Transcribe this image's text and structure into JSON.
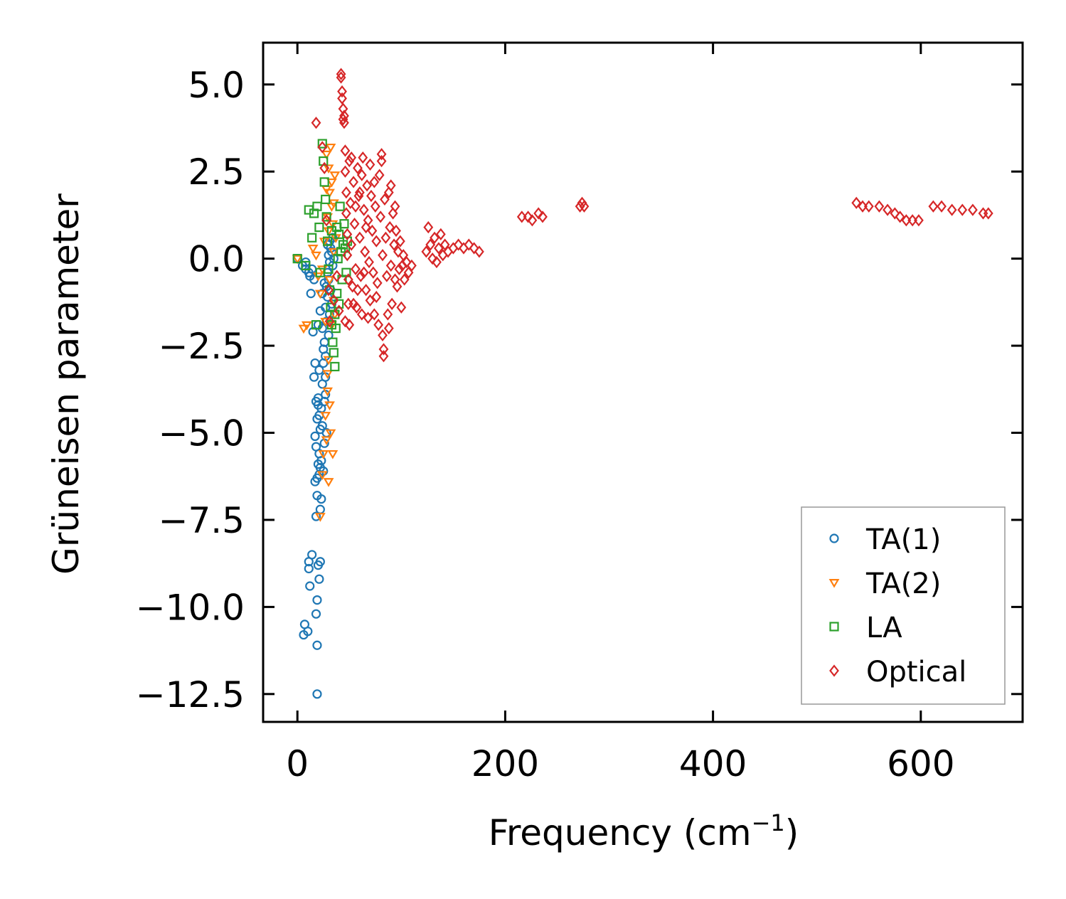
{
  "chart_data": {
    "type": "scatter",
    "title": "",
    "xlabel": "Frequency (cm",
    "xlabel_sup": "−1",
    "xlabel_close": ")",
    "ylabel": "Grüneisen parameter",
    "xlim": [
      -33,
      698
    ],
    "ylim": [
      -13.3,
      6.2
    ],
    "xticks": [
      0,
      200,
      400,
      600
    ],
    "xtick_labels": [
      "0",
      "200",
      "400",
      "600"
    ],
    "yticks": [
      5.0,
      2.5,
      0.0,
      -2.5,
      -5.0,
      -7.5,
      -10.0,
      -12.5
    ],
    "ytick_labels": [
      "5.0",
      "2.5",
      "0.0",
      "−2.5",
      "−5.0",
      "−7.5",
      "−10.0",
      "−12.5"
    ],
    "legend_position": "lower-right",
    "series": [
      {
        "name": "TA(1)",
        "marker": "circle",
        "color": "#1f77b4",
        "points": [
          [
            0,
            0
          ],
          [
            5,
            -0.2
          ],
          [
            8,
            -0.1
          ],
          [
            12,
            -0.5
          ],
          [
            13,
            -1.0
          ],
          [
            14,
            -0.3
          ],
          [
            15,
            -2.1
          ],
          [
            16,
            -0.6
          ],
          [
            16,
            -3.4
          ],
          [
            17,
            -3.0
          ],
          [
            17,
            -5.1
          ],
          [
            17,
            -6.4
          ],
          [
            18,
            -4.1
          ],
          [
            18,
            -5.4
          ],
          [
            18,
            -7.4
          ],
          [
            18,
            -10.2
          ],
          [
            19,
            -12.5
          ],
          [
            19,
            -6.3
          ],
          [
            19,
            -4.6
          ],
          [
            19,
            -6.8
          ],
          [
            19,
            -11.1
          ],
          [
            19,
            -9.8
          ],
          [
            20,
            -4.0
          ],
          [
            20,
            -4.2
          ],
          [
            20,
            -5.9
          ],
          [
            20,
            -8.8
          ],
          [
            21,
            -3.2
          ],
          [
            21,
            -4.5
          ],
          [
            21,
            -6.2
          ],
          [
            21,
            -9.2
          ],
          [
            22,
            -4.9
          ],
          [
            22,
            -6.0
          ],
          [
            22,
            -7.2
          ],
          [
            22,
            -8.7
          ],
          [
            23,
            -5.8
          ],
          [
            23,
            -6.9
          ],
          [
            23,
            -4.3
          ],
          [
            24,
            -3.6
          ],
          [
            24,
            -4.8
          ],
          [
            24,
            -2.0
          ],
          [
            25,
            -3.0
          ],
          [
            25,
            -6.1
          ],
          [
            26,
            -2.4
          ],
          [
            26,
            -4.1
          ],
          [
            27,
            -1.4
          ],
          [
            27,
            -2.8
          ],
          [
            27,
            -3.4
          ],
          [
            28,
            -1.8
          ],
          [
            28,
            -0.8
          ],
          [
            28,
            -5.0
          ],
          [
            29,
            -0.4
          ],
          [
            29,
            -1.1
          ],
          [
            30,
            0.1
          ],
          [
            30,
            -2.2
          ],
          [
            30,
            -0.6
          ],
          [
            31,
            0.5
          ],
          [
            31,
            -1.6
          ],
          [
            32,
            0.3
          ],
          [
            32,
            -0.9
          ],
          [
            33,
            0.2
          ],
          [
            34,
            0.6
          ],
          [
            34,
            -0.2
          ],
          [
            35,
            0.0
          ],
          [
            33,
            -1.3
          ],
          [
            31,
            -0.1
          ],
          [
            29,
            0.4
          ],
          [
            26,
            -0.7
          ],
          [
            24,
            -1.0
          ],
          [
            22,
            -1.5
          ],
          [
            20,
            -1.9
          ],
          [
            11,
            -0.4
          ],
          [
            10,
            -10.7
          ],
          [
            7,
            -10.5
          ],
          [
            6,
            -10.8
          ],
          [
            12,
            -9.4
          ],
          [
            11,
            -8.9
          ],
          [
            11,
            -8.7
          ],
          [
            14,
            -8.5
          ],
          [
            8,
            -0.3
          ],
          [
            25,
            -2.6
          ],
          [
            27,
            -3.9
          ],
          [
            26,
            -5.3
          ],
          [
            21,
            -5.6
          ]
        ]
      },
      {
        "name": "TA(2)",
        "marker": "triangle-down",
        "color": "#ff7f0e",
        "points": [
          [
            0,
            0
          ],
          [
            6,
            -2.0
          ],
          [
            9,
            -1.9
          ],
          [
            15,
            0.3
          ],
          [
            18,
            0.1
          ],
          [
            20,
            -0.5
          ],
          [
            22,
            -7.4
          ],
          [
            24,
            -6.2
          ],
          [
            25,
            -5.6
          ],
          [
            27,
            -4.5
          ],
          [
            28,
            2.0
          ],
          [
            28,
            3.0
          ],
          [
            29,
            1.2
          ],
          [
            29,
            -3.8
          ],
          [
            30,
            2.6
          ],
          [
            30,
            0.8
          ],
          [
            30,
            -2.9
          ],
          [
            31,
            1.9
          ],
          [
            31,
            -0.6
          ],
          [
            32,
            3.2
          ],
          [
            32,
            -5.0
          ],
          [
            33,
            2.2
          ],
          [
            33,
            1.5
          ],
          [
            34,
            1.0
          ],
          [
            34,
            -5.6
          ],
          [
            35,
            0.2
          ],
          [
            35,
            -1.2
          ],
          [
            36,
            -1.6
          ],
          [
            36,
            2.4
          ],
          [
            37,
            0.6
          ],
          [
            31,
            -4.2
          ],
          [
            29,
            -3.3
          ],
          [
            27,
            -1.8
          ],
          [
            26,
            0.5
          ],
          [
            24,
            -0.3
          ],
          [
            22,
            -1.0
          ],
          [
            33,
            -1.9
          ],
          [
            35,
            1.6
          ],
          [
            30,
            -6.4
          ],
          [
            28,
            -5.2
          ]
        ]
      },
      {
        "name": "LA",
        "marker": "square",
        "color": "#2ca02c",
        "points": [
          [
            0,
            0
          ],
          [
            8,
            -0.2
          ],
          [
            11,
            1.4
          ],
          [
            14,
            0.6
          ],
          [
            16,
            1.3
          ],
          [
            18,
            -1.9
          ],
          [
            19,
            1.5
          ],
          [
            21,
            0.9
          ],
          [
            22,
            -0.4
          ],
          [
            24,
            3.3
          ],
          [
            25,
            2.8
          ],
          [
            26,
            2.2
          ],
          [
            27,
            1.7
          ],
          [
            28,
            1.2
          ],
          [
            29,
            0.5
          ],
          [
            30,
            -0.3
          ],
          [
            31,
            -0.9
          ],
          [
            32,
            -1.4
          ],
          [
            33,
            -1.9
          ],
          [
            34,
            -2.4
          ],
          [
            35,
            -2.7
          ],
          [
            36,
            -3.1
          ],
          [
            37,
            -2.0
          ],
          [
            38,
            -1.0
          ],
          [
            39,
            0.0
          ],
          [
            40,
            0.7
          ],
          [
            41,
            1.5
          ],
          [
            42,
            0.2
          ],
          [
            43,
            -0.6
          ],
          [
            44,
            0.4
          ],
          [
            45,
            1.0
          ],
          [
            46,
            0.3
          ],
          [
            47,
            -0.4
          ],
          [
            48,
            0.5
          ],
          [
            36,
            -1.6
          ],
          [
            38,
            0.9
          ],
          [
            40,
            -1.3
          ],
          [
            33,
            0.8
          ]
        ]
      },
      {
        "name": "Optical",
        "marker": "diamond",
        "color": "#d62728",
        "points": [
          [
            18,
            3.9
          ],
          [
            24,
            3.2
          ],
          [
            26,
            2.6
          ],
          [
            28,
            1.1
          ],
          [
            30,
            -0.9
          ],
          [
            31,
            -1.8
          ],
          [
            35,
            -1.2
          ],
          [
            38,
            -0.5
          ],
          [
            40,
            -1.5
          ],
          [
            42,
            5.3
          ],
          [
            42,
            5.2
          ],
          [
            43,
            4.8
          ],
          [
            43,
            4.6
          ],
          [
            44,
            4.3
          ],
          [
            44,
            4.0
          ],
          [
            45,
            4.1
          ],
          [
            45,
            3.9
          ],
          [
            46,
            3.1
          ],
          [
            46,
            2.5
          ],
          [
            47,
            1.9
          ],
          [
            47,
            1.3
          ],
          [
            48,
            0.7
          ],
          [
            48,
            0.1
          ],
          [
            49,
            -0.6
          ],
          [
            49,
            -1.3
          ],
          [
            50,
            2.8
          ],
          [
            50,
            -1.9
          ],
          [
            51,
            1.6
          ],
          [
            52,
            0.4
          ],
          [
            53,
            -0.8
          ],
          [
            54,
            2.2
          ],
          [
            55,
            1.0
          ],
          [
            56,
            -0.3
          ],
          [
            57,
            -1.4
          ],
          [
            58,
            2.6
          ],
          [
            59,
            1.8
          ],
          [
            60,
            0.6
          ],
          [
            61,
            -0.5
          ],
          [
            62,
            -1.6
          ],
          [
            63,
            2.9
          ],
          [
            64,
            1.4
          ],
          [
            65,
            0.2
          ],
          [
            66,
            -0.9
          ],
          [
            67,
            2.1
          ],
          [
            68,
            1.1
          ],
          [
            69,
            -0.1
          ],
          [
            70,
            -1.2
          ],
          [
            71,
            1.8
          ],
          [
            72,
            0.8
          ],
          [
            73,
            -0.4
          ],
          [
            74,
            -1.6
          ],
          [
            75,
            1.5
          ],
          [
            76,
            0.5
          ],
          [
            77,
            -0.7
          ],
          [
            78,
            -1.9
          ],
          [
            79,
            2.4
          ],
          [
            80,
            1.2
          ],
          [
            81,
            3.0
          ],
          [
            81,
            2.8
          ],
          [
            82,
            0.1
          ],
          [
            82,
            -2.2
          ],
          [
            83,
            -2.8
          ],
          [
            83,
            -2.6
          ],
          [
            84,
            1.7
          ],
          [
            85,
            0.6
          ],
          [
            86,
            -0.5
          ],
          [
            87,
            -1.6
          ],
          [
            88,
            1.9
          ],
          [
            89,
            0.9
          ],
          [
            90,
            -0.2
          ],
          [
            91,
            -1.3
          ],
          [
            92,
            1.3
          ],
          [
            93,
            0.4
          ],
          [
            94,
            -0.6
          ],
          [
            95,
            0.8
          ],
          [
            96,
            -0.8
          ],
          [
            97,
            0.2
          ],
          [
            98,
            -0.3
          ],
          [
            99,
            0.5
          ],
          [
            100,
            -1.4
          ],
          [
            101,
            -0.2
          ],
          [
            102,
            0.1
          ],
          [
            103,
            -0.6
          ],
          [
            105,
            -0.1
          ],
          [
            107,
            -0.4
          ],
          [
            110,
            -0.2
          ],
          [
            124,
            0.2
          ],
          [
            126,
            0.9
          ],
          [
            128,
            0.4
          ],
          [
            130,
            0.0
          ],
          [
            132,
            0.6
          ],
          [
            134,
            -0.1
          ],
          [
            136,
            0.3
          ],
          [
            138,
            0.7
          ],
          [
            140,
            0.1
          ],
          [
            142,
            0.4
          ],
          [
            145,
            0.2
          ],
          [
            150,
            0.3
          ],
          [
            155,
            0.4
          ],
          [
            160,
            0.3
          ],
          [
            165,
            0.4
          ],
          [
            170,
            0.3
          ],
          [
            175,
            0.2
          ],
          [
            216,
            1.2
          ],
          [
            222,
            1.2
          ],
          [
            226,
            1.1
          ],
          [
            232,
            1.3
          ],
          [
            236,
            1.2
          ],
          [
            272,
            1.5
          ],
          [
            274,
            1.6
          ],
          [
            276,
            1.5
          ],
          [
            538,
            1.6
          ],
          [
            544,
            1.5
          ],
          [
            550,
            1.5
          ],
          [
            560,
            1.5
          ],
          [
            568,
            1.4
          ],
          [
            575,
            1.3
          ],
          [
            580,
            1.2
          ],
          [
            586,
            1.1
          ],
          [
            592,
            1.1
          ],
          [
            598,
            1.1
          ],
          [
            612,
            1.5
          ],
          [
            620,
            1.5
          ],
          [
            630,
            1.4
          ],
          [
            640,
            1.4
          ],
          [
            650,
            1.4
          ],
          [
            660,
            1.3
          ],
          [
            665,
            1.3
          ],
          [
            60,
            1.9
          ],
          [
            62,
            2.4
          ],
          [
            70,
            2.7
          ],
          [
            74,
            2.2
          ],
          [
            76,
            -1.1
          ],
          [
            68,
            -1.7
          ],
          [
            58,
            -0.9
          ],
          [
            52,
            2.9
          ],
          [
            90,
            2.1
          ],
          [
            94,
            1.5
          ],
          [
            88,
            -2.0
          ],
          [
            66,
            0.9
          ],
          [
            64,
            -0.4
          ],
          [
            56,
            1.5
          ],
          [
            54,
            -1.3
          ],
          [
            46,
            -1.8
          ]
        ]
      }
    ]
  }
}
